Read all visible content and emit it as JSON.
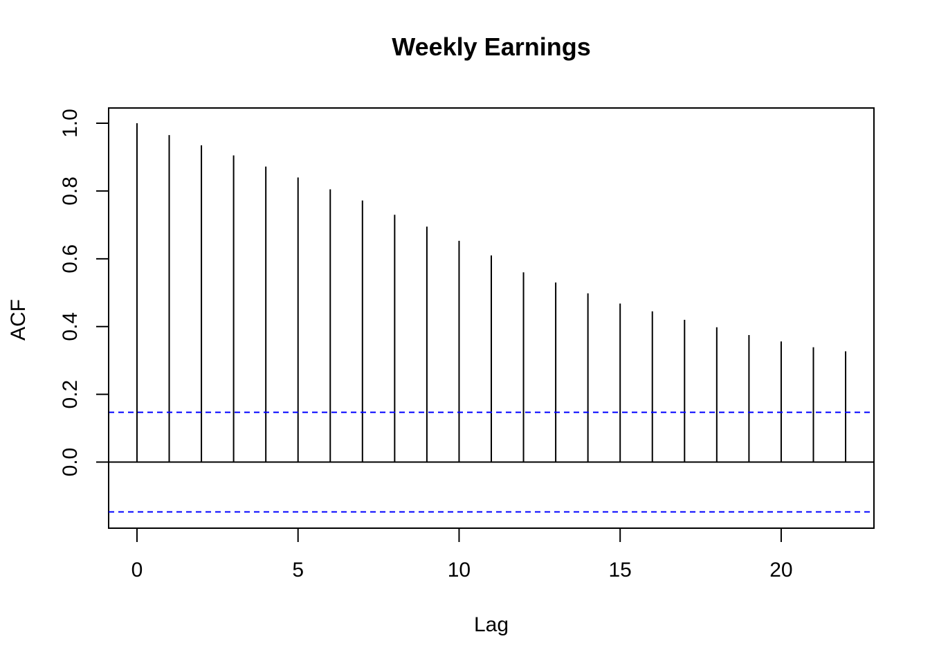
{
  "chart_data": {
    "type": "bar",
    "title": "Weekly Earnings",
    "xlabel": "Lag",
    "ylabel": "ACF",
    "x": [
      0,
      1,
      2,
      3,
      4,
      5,
      6,
      7,
      8,
      9,
      10,
      11,
      12,
      13,
      14,
      15,
      16,
      17,
      18,
      19,
      20,
      21,
      22
    ],
    "values": [
      1.0,
      0.965,
      0.935,
      0.905,
      0.872,
      0.84,
      0.805,
      0.772,
      0.73,
      0.695,
      0.653,
      0.61,
      0.56,
      0.53,
      0.498,
      0.468,
      0.445,
      0.42,
      0.398,
      0.375,
      0.356,
      0.339,
      0.327
    ],
    "confidence_bounds": [
      0.147,
      -0.147
    ],
    "xlim": [
      -0.88,
      22.88
    ],
    "ylim": [
      -0.195,
      1.045
    ],
    "x_ticks": [
      0,
      5,
      10,
      15,
      20
    ],
    "x_tick_labels": [
      "0",
      "5",
      "10",
      "15",
      "20"
    ],
    "y_ticks": [
      0.0,
      0.2,
      0.4,
      0.6,
      0.8,
      1.0
    ],
    "y_tick_labels": [
      "0.0",
      "0.2",
      "0.4",
      "0.6",
      "0.8",
      "1.0"
    ],
    "grid": false,
    "legend": "none",
    "colors": {
      "bars": "#000000",
      "zero_line": "#000000",
      "confidence_bounds": "#0000FF",
      "box": "#000000"
    }
  }
}
